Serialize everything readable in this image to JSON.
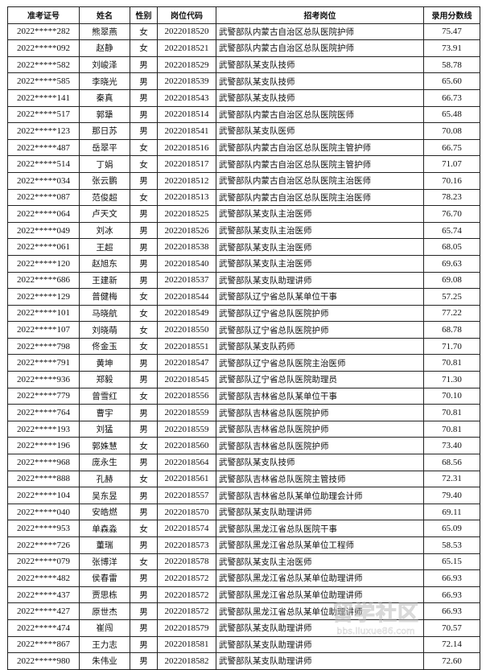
{
  "headers": [
    "准考证号",
    "姓名",
    "性别",
    "岗位代码",
    "招考岗位",
    "录用分数线"
  ],
  "rows": [
    [
      "2022*****282",
      "熊翠燕",
      "女",
      "2022018520",
      "武警部队内蒙古自治区总队医院护师",
      "75.47"
    ],
    [
      "2022*****092",
      "赵静",
      "女",
      "2022018521",
      "武警部队内蒙古自治区总队医院护师",
      "73.91"
    ],
    [
      "2022*****582",
      "刘峻泽",
      "男",
      "2022018529",
      "武警部队某支队技师",
      "58.78"
    ],
    [
      "2022*****585",
      "李晓光",
      "男",
      "2022018539",
      "武警部队某支队技师",
      "65.60"
    ],
    [
      "2022*****141",
      "秦真",
      "男",
      "2022018543",
      "武警部队某支队技师",
      "66.73"
    ],
    [
      "2022*****517",
      "郭犟",
      "男",
      "2022018514",
      "武警部队内蒙古自治区总队医院医师",
      "65.48"
    ],
    [
      "2022*****123",
      "那日苏",
      "男",
      "2022018541",
      "武警部队某支队医师",
      "70.08"
    ],
    [
      "2022*****487",
      "岳翠平",
      "女",
      "2022018516",
      "武警部队内蒙古自治区总队医院主管护师",
      "66.75"
    ],
    [
      "2022*****514",
      "丁娟",
      "女",
      "2022018517",
      "武警部队内蒙古自治区总队医院主管护师",
      "71.07"
    ],
    [
      "2022*****034",
      "张云鹏",
      "男",
      "2022018512",
      "武警部队内蒙古自治区总队医院主治医师",
      "70.16"
    ],
    [
      "2022*****087",
      "范俊超",
      "女",
      "2022018513",
      "武警部队内蒙古自治区总队医院主治医师",
      "78.23"
    ],
    [
      "2022*****064",
      "卢天文",
      "男",
      "2022018525",
      "武警部队某支队主治医师",
      "76.70"
    ],
    [
      "2022*****049",
      "刘冰",
      "男",
      "2022018526",
      "武警部队某支队主治医师",
      "65.74"
    ],
    [
      "2022*****061",
      "王超",
      "男",
      "2022018538",
      "武警部队某支队主治医师",
      "68.05"
    ],
    [
      "2022*****120",
      "赵旭东",
      "男",
      "2022018540",
      "武警部队某支队主治医师",
      "69.63"
    ],
    [
      "2022*****686",
      "王建新",
      "男",
      "2022018537",
      "武警部队某支队助理讲师",
      "69.08"
    ],
    [
      "2022*****129",
      "普健梅",
      "女",
      "2022018544",
      "武警部队辽宁省总队某单位干事",
      "57.25"
    ],
    [
      "2022*****101",
      "马晓航",
      "女",
      "2022018549",
      "武警部队辽宁省总队医院护师",
      "77.22"
    ],
    [
      "2022*****107",
      "刘晓萌",
      "女",
      "2022018550",
      "武警部队辽宁省总队医院护师",
      "68.78"
    ],
    [
      "2022*****798",
      "佟金玉",
      "女",
      "2022018551",
      "武警部队某支队药师",
      "71.70"
    ],
    [
      "2022*****791",
      "黄坤",
      "男",
      "2022018547",
      "武警部队辽宁省总队医院主治医师",
      "70.81"
    ],
    [
      "2022*****936",
      "郑毅",
      "男",
      "2022018545",
      "武警部队辽宁省总队医院助理员",
      "71.30"
    ],
    [
      "2022*****779",
      "曾雪红",
      "女",
      "2022018556",
      "武警部队吉林省总队某单位干事",
      "70.10"
    ],
    [
      "2022*****764",
      "曹宇",
      "男",
      "2022018559",
      "武警部队吉林省总队医院护师",
      "70.81"
    ],
    [
      "2022*****193",
      "刘猛",
      "男",
      "2022018559",
      "武警部队吉林省总队医院护师",
      "70.81"
    ],
    [
      "2022*****196",
      "郭姝慧",
      "女",
      "2022018560",
      "武警部队吉林省总队医院护师",
      "73.40"
    ],
    [
      "2022*****968",
      "庞永生",
      "男",
      "2022018564",
      "武警部队某支队技师",
      "68.56"
    ],
    [
      "2022*****888",
      "孔赫",
      "女",
      "2022018561",
      "武警部队吉林省总队医院主管技师",
      "72.31"
    ],
    [
      "2022*****104",
      "吴东昱",
      "男",
      "2022018557",
      "武警部队吉林省总队某单位助理会计师",
      "79.40"
    ],
    [
      "2022*****040",
      "安皓燃",
      "男",
      "2022018570",
      "武警部队某支队助理讲师",
      "69.11"
    ],
    [
      "2022*****953",
      "单森淼",
      "女",
      "2022018574",
      "武警部队黑龙江省总队医院干事",
      "65.09"
    ],
    [
      "2022*****726",
      "董瑞",
      "男",
      "2022018573",
      "武警部队黑龙江省总队某单位工程师",
      "58.53"
    ],
    [
      "2022*****079",
      "张博洋",
      "女",
      "2022018578",
      "武警部队某支队主治医师",
      "65.15"
    ],
    [
      "2022*****482",
      "侯春雷",
      "男",
      "2022018572",
      "武警部队黑龙江省总队某单位助理讲师",
      "66.93"
    ],
    [
      "2022*****437",
      "贾思栋",
      "男",
      "2022018572",
      "武警部队黑龙江省总队某单位助理讲师",
      "66.93"
    ],
    [
      "2022*****427",
      "原世杰",
      "男",
      "2022018572",
      "武警部队黑龙江省总队某单位助理讲师",
      "66.93"
    ],
    [
      "2022*****474",
      "崔闯",
      "男",
      "2022018579",
      "武警部队某支队助理讲师",
      "70.57"
    ],
    [
      "2022*****867",
      "王力志",
      "男",
      "2022018581",
      "武警部队某支队助理讲师",
      "72.14"
    ],
    [
      "2022*****980",
      "朱伟业",
      "男",
      "2022018582",
      "武警部队某支队助理讲师",
      "72.60"
    ]
  ],
  "watermark": {
    "logo": "留学社区",
    "url": "bbs.liuxue86.com"
  }
}
